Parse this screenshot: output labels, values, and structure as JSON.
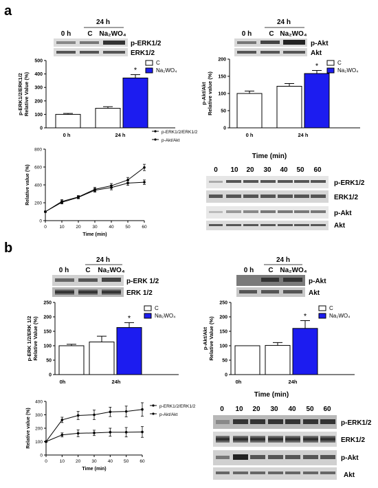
{
  "panels": {
    "a": {
      "letter": "a",
      "erk_blot": {
        "header": "24 h",
        "lanes": [
          "0 h",
          "C",
          "Na₂WO₄"
        ],
        "row_labels": [
          "p-ERK1/2",
          "ERK1/2"
        ]
      },
      "akt_blot": {
        "header": "24 h",
        "lanes": [
          "0 h",
          "C",
          "Na₂WO₄"
        ],
        "row_labels": [
          "p-Akt",
          "Akt"
        ]
      },
      "timecourse_blot": {
        "title": "Time (min)",
        "lanes": [
          "0",
          "10",
          "20",
          "30",
          "40",
          "50",
          "60"
        ],
        "row_labels": [
          "p-ERK1/2",
          "ERK1/2",
          "p-Akt",
          "Akt"
        ]
      }
    },
    "b": {
      "letter": "b",
      "erk_blot": {
        "header": "24 h",
        "lanes": [
          "0 h",
          "C",
          "Na₂WO₄"
        ],
        "row_labels": [
          "p-ERK 1/2",
          "ERK 1/2"
        ]
      },
      "akt_blot": {
        "header": "24 h",
        "lanes": [
          "0 h",
          "C",
          "Na₂WO₄"
        ],
        "row_labels": [
          "p-Akt",
          "Akt"
        ]
      },
      "timecourse_blot": {
        "title": "Time (min)",
        "lanes": [
          "0",
          "10",
          "20",
          "30",
          "40",
          "50",
          "60"
        ],
        "row_labels": [
          "p-ERK1/2",
          "ERK1/2",
          "p-Akt",
          "Akt"
        ]
      }
    }
  },
  "colors": {
    "treated": "#1c1cf0",
    "control": "#ffffff",
    "axis": "#000000",
    "blot_band": "#3a3a3a"
  },
  "chart_data": [
    {
      "id": "a-erk-bar",
      "type": "bar",
      "ylabel": "p-ERK1/2/ERK1/2\nRelative Value (%)",
      "ylim": [
        0,
        500
      ],
      "yticks": [
        0,
        100,
        200,
        300,
        400,
        500
      ],
      "categories": [
        "0 h",
        "24 h"
      ],
      "legend": [
        "C",
        "Na₂WO₄"
      ],
      "bars": [
        {
          "category": "0 h",
          "series": "C",
          "value": 100,
          "error": 7
        },
        {
          "category": "24 h",
          "series": "C",
          "value": 145,
          "error": 12
        },
        {
          "category": "24 h",
          "series": "Na₂WO₄",
          "value": 370,
          "error": 25,
          "mark": "*"
        }
      ]
    },
    {
      "id": "a-akt-bar",
      "type": "bar",
      "ylabel": "p-Akt/Akt\nRelative value (%)",
      "ylim": [
        0,
        200
      ],
      "yticks": [
        0,
        50,
        100,
        150,
        200
      ],
      "categories": [
        "0 h",
        "24 h"
      ],
      "legend": [
        "C",
        "Na₂WO₄"
      ],
      "bars": [
        {
          "category": "0 h",
          "series": "C",
          "value": 100,
          "error": 7
        },
        {
          "category": "24 h",
          "series": "C",
          "value": 121,
          "error": 8
        },
        {
          "category": "24 h",
          "series": "Na₂WO₄",
          "value": 158,
          "error": 9,
          "mark": "*"
        }
      ]
    },
    {
      "id": "a-time-line",
      "type": "line",
      "xlabel": "Time (min)",
      "ylabel": "Relative value (%)",
      "xlim": [
        0,
        60
      ],
      "ylim": [
        0,
        800
      ],
      "xticks": [
        0,
        10,
        20,
        30,
        40,
        50,
        60
      ],
      "yticks": [
        0,
        200,
        400,
        600,
        800
      ],
      "x": [
        0,
        10,
        20,
        30,
        40,
        50,
        60
      ],
      "series": [
        {
          "name": "p-ERK1/2/ERK1/2",
          "values": [
            100,
            215,
            265,
            350,
            390,
            455,
            595
          ],
          "errors": [
            8,
            20,
            15,
            22,
            25,
            28,
            35
          ]
        },
        {
          "name": "p-Akt/Akt",
          "values": [
            100,
            205,
            260,
            340,
            370,
            420,
            430
          ],
          "errors": [
            8,
            18,
            15,
            20,
            25,
            25,
            25
          ]
        }
      ]
    },
    {
      "id": "b-erk-bar",
      "type": "bar",
      "ylabel": "p-ERK 1/2/ERK 1/2\nRelative Value (%)",
      "ylim": [
        0,
        250
      ],
      "yticks": [
        0,
        50,
        100,
        150,
        200,
        250
      ],
      "categories": [
        "0h",
        "24h"
      ],
      "legend": [
        "C",
        "Na₂WO₄"
      ],
      "bars": [
        {
          "category": "0h",
          "series": "C",
          "value": 100,
          "error": 5
        },
        {
          "category": "24h",
          "series": "C",
          "value": 113,
          "error": 20
        },
        {
          "category": "24h",
          "series": "Na₂WO₄",
          "value": 163,
          "error": 17,
          "mark": "*"
        }
      ]
    },
    {
      "id": "b-akt-bar",
      "type": "bar",
      "ylabel": "p-Akt/Akt\nRelative Value (%)",
      "ylim": [
        0,
        250
      ],
      "yticks": [
        0,
        50,
        100,
        150,
        200,
        250
      ],
      "categories": [
        "0h",
        "24h"
      ],
      "legend": [
        "C",
        "Na₂WO₄"
      ],
      "bars": [
        {
          "category": "0h",
          "series": "C",
          "value": 100,
          "error": 0
        },
        {
          "category": "24h",
          "series": "C",
          "value": 101,
          "error": 10
        },
        {
          "category": "24h",
          "series": "Na₂WO₄",
          "value": 160,
          "error": 27,
          "mark": "*"
        }
      ]
    },
    {
      "id": "b-time-line",
      "type": "line",
      "xlabel": "Time (min)",
      "ylabel": "Relative value (%)",
      "xlim": [
        0,
        60
      ],
      "ylim": [
        0,
        400
      ],
      "xticks": [
        0,
        10,
        20,
        30,
        40,
        50,
        60
      ],
      "yticks": [
        0,
        100,
        200,
        300,
        400
      ],
      "x": [
        0,
        10,
        20,
        30,
        40,
        50,
        60
      ],
      "series": [
        {
          "name": "p-ERK1/2/ERK1/2",
          "values": [
            100,
            262,
            295,
            300,
            322,
            325,
            340
          ],
          "errors": [
            5,
            20,
            30,
            35,
            35,
            40,
            50
          ]
        },
        {
          "name": "p-Akt/Akt",
          "values": [
            100,
            150,
            162,
            165,
            170,
            170,
            172
          ],
          "errors": [
            5,
            15,
            25,
            20,
            30,
            35,
            40
          ]
        }
      ]
    }
  ]
}
